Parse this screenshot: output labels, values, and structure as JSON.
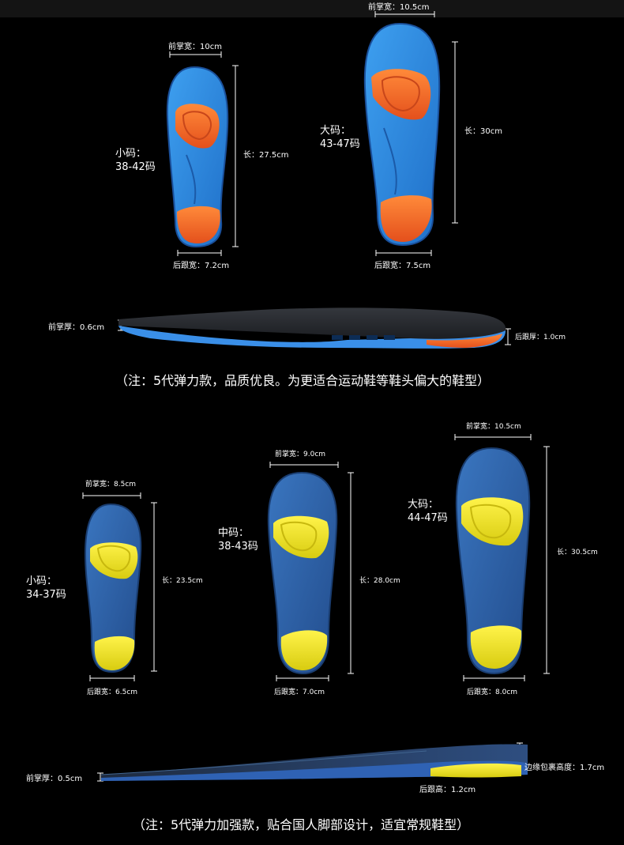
{
  "section1": {
    "small": {
      "name": "小码：",
      "range": "38-42码",
      "forefoot_width": "前掌宽：10cm",
      "length": "长：27.5cm",
      "heel_width": "后跟宽：7.2cm"
    },
    "large": {
      "name": "大码：",
      "range": "43-47码",
      "forefoot_width": "前掌宽：10.5cm",
      "length": "长：30cm",
      "heel_width": "后跟宽：7.5cm"
    },
    "profile": {
      "forefoot_thickness": "前掌厚：0.6cm",
      "heel_thickness": "后跟厚：1.0cm"
    },
    "note": "（注：5代弹力款，品质优良。为更适合运动鞋等鞋头偏大的鞋型）"
  },
  "section2": {
    "small": {
      "name": "小码：",
      "range": "34-37码",
      "forefoot_width": "前掌宽：8.5cm",
      "length": "长：23.5cm",
      "heel_width": "后跟宽：6.5cm"
    },
    "medium": {
      "name": "中码：",
      "range": "38-43码",
      "forefoot_width": "前掌宽：9.0cm",
      "length": "长：28.0cm",
      "heel_width": "后跟宽：7.0cm"
    },
    "large": {
      "name": "大码：",
      "range": "44-47码",
      "forefoot_width": "前掌宽：10.5cm",
      "length": "长：30.5cm",
      "heel_width": "后跟宽：8.0cm"
    },
    "profile": {
      "forefoot_thickness": "前掌厚：0.5cm",
      "edge_height": "边缘包裹高度：1.7cm",
      "heel_height": "后跟高：1.2cm"
    },
    "note": "（注：5代弹力加强款，贴合国人脚部设计，适宜常规鞋型）"
  },
  "colors": {
    "background": "#000000",
    "insole_blue_1": "#2f8fe0",
    "insole_blue_2": "#2a5fa8",
    "pad_orange": "#f26a2a",
    "pad_yellow": "#f0e62a",
    "top_black": "#2a2d33"
  }
}
